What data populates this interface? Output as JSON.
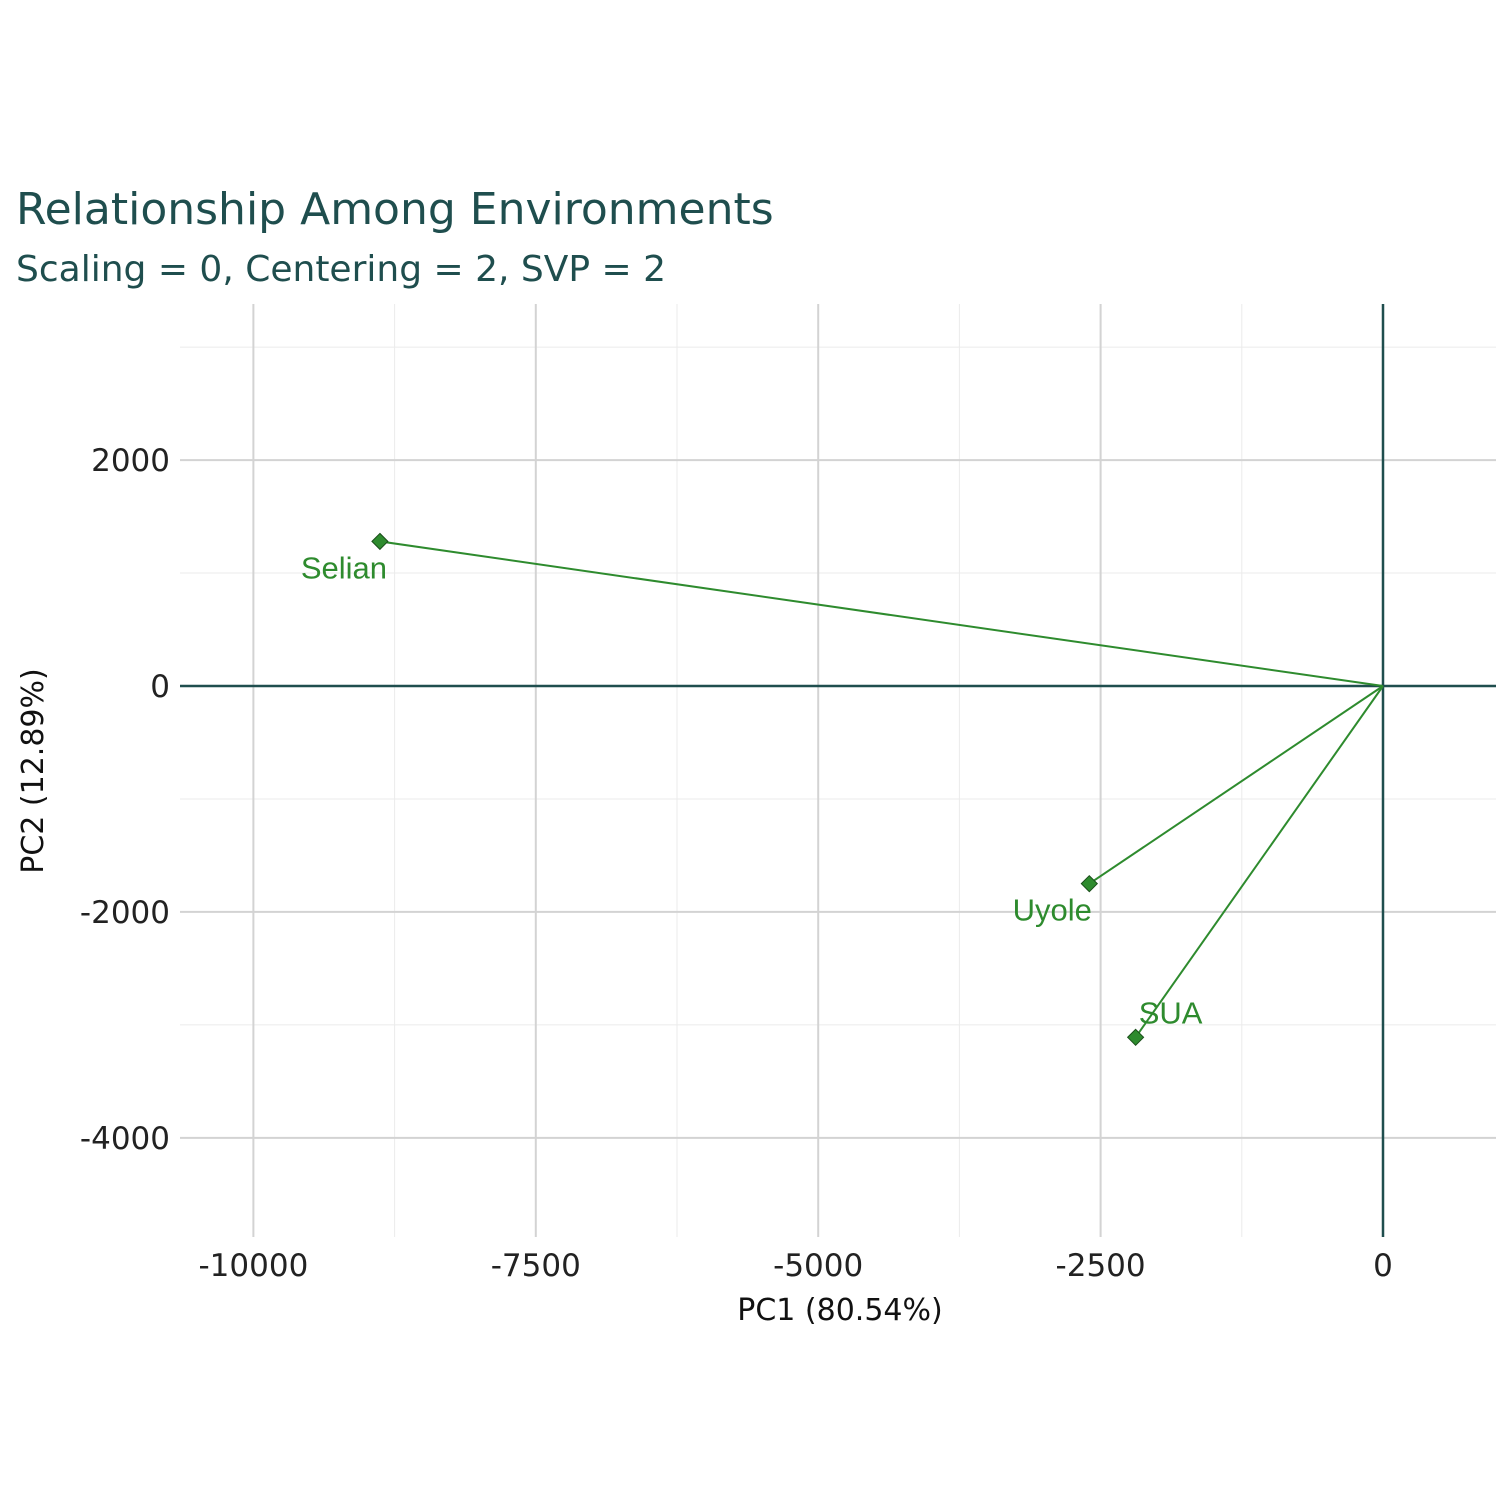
{
  "chart_data": {
    "type": "scatter",
    "title": "Relationship Among Environments",
    "subtitle": "Scaling = 0, Centering = 2, SVP = 2",
    "xlabel": "PC1 (80.54%)",
    "ylabel": "PC2 (12.89%)",
    "xlim": [
      -11300,
      1000
    ],
    "ylim": [
      -4900,
      3350
    ],
    "x_ticks": [
      -10000,
      -7500,
      -5000,
      -2500,
      0
    ],
    "x_tick_labels": [
      "-10000",
      "-7500",
      "-5000",
      "-2500",
      "0"
    ],
    "y_ticks": [
      2000,
      0,
      -2000,
      -4000
    ],
    "y_tick_labels": [
      "2000",
      "0",
      "-2000",
      "-4000"
    ],
    "grid": true,
    "origin_lines": true,
    "vectors_from_origin": true,
    "points": [
      {
        "label": "Selian",
        "x": -8880,
        "y": 1280
      },
      {
        "label": "Uyole",
        "x": -2600,
        "y": -1750
      },
      {
        "label": "SUA",
        "x": -2190,
        "y": -3110
      }
    ],
    "colors": {
      "title": "#1f4e4e",
      "axis_line": "#1f4e4e",
      "grid_major": "#d3d3d3",
      "grid_minor": "#ebebeb",
      "vector": "#2e8b2e",
      "marker": "#2e8b2e",
      "label": "#2e8b2e",
      "tick_text": "#222222"
    }
  }
}
